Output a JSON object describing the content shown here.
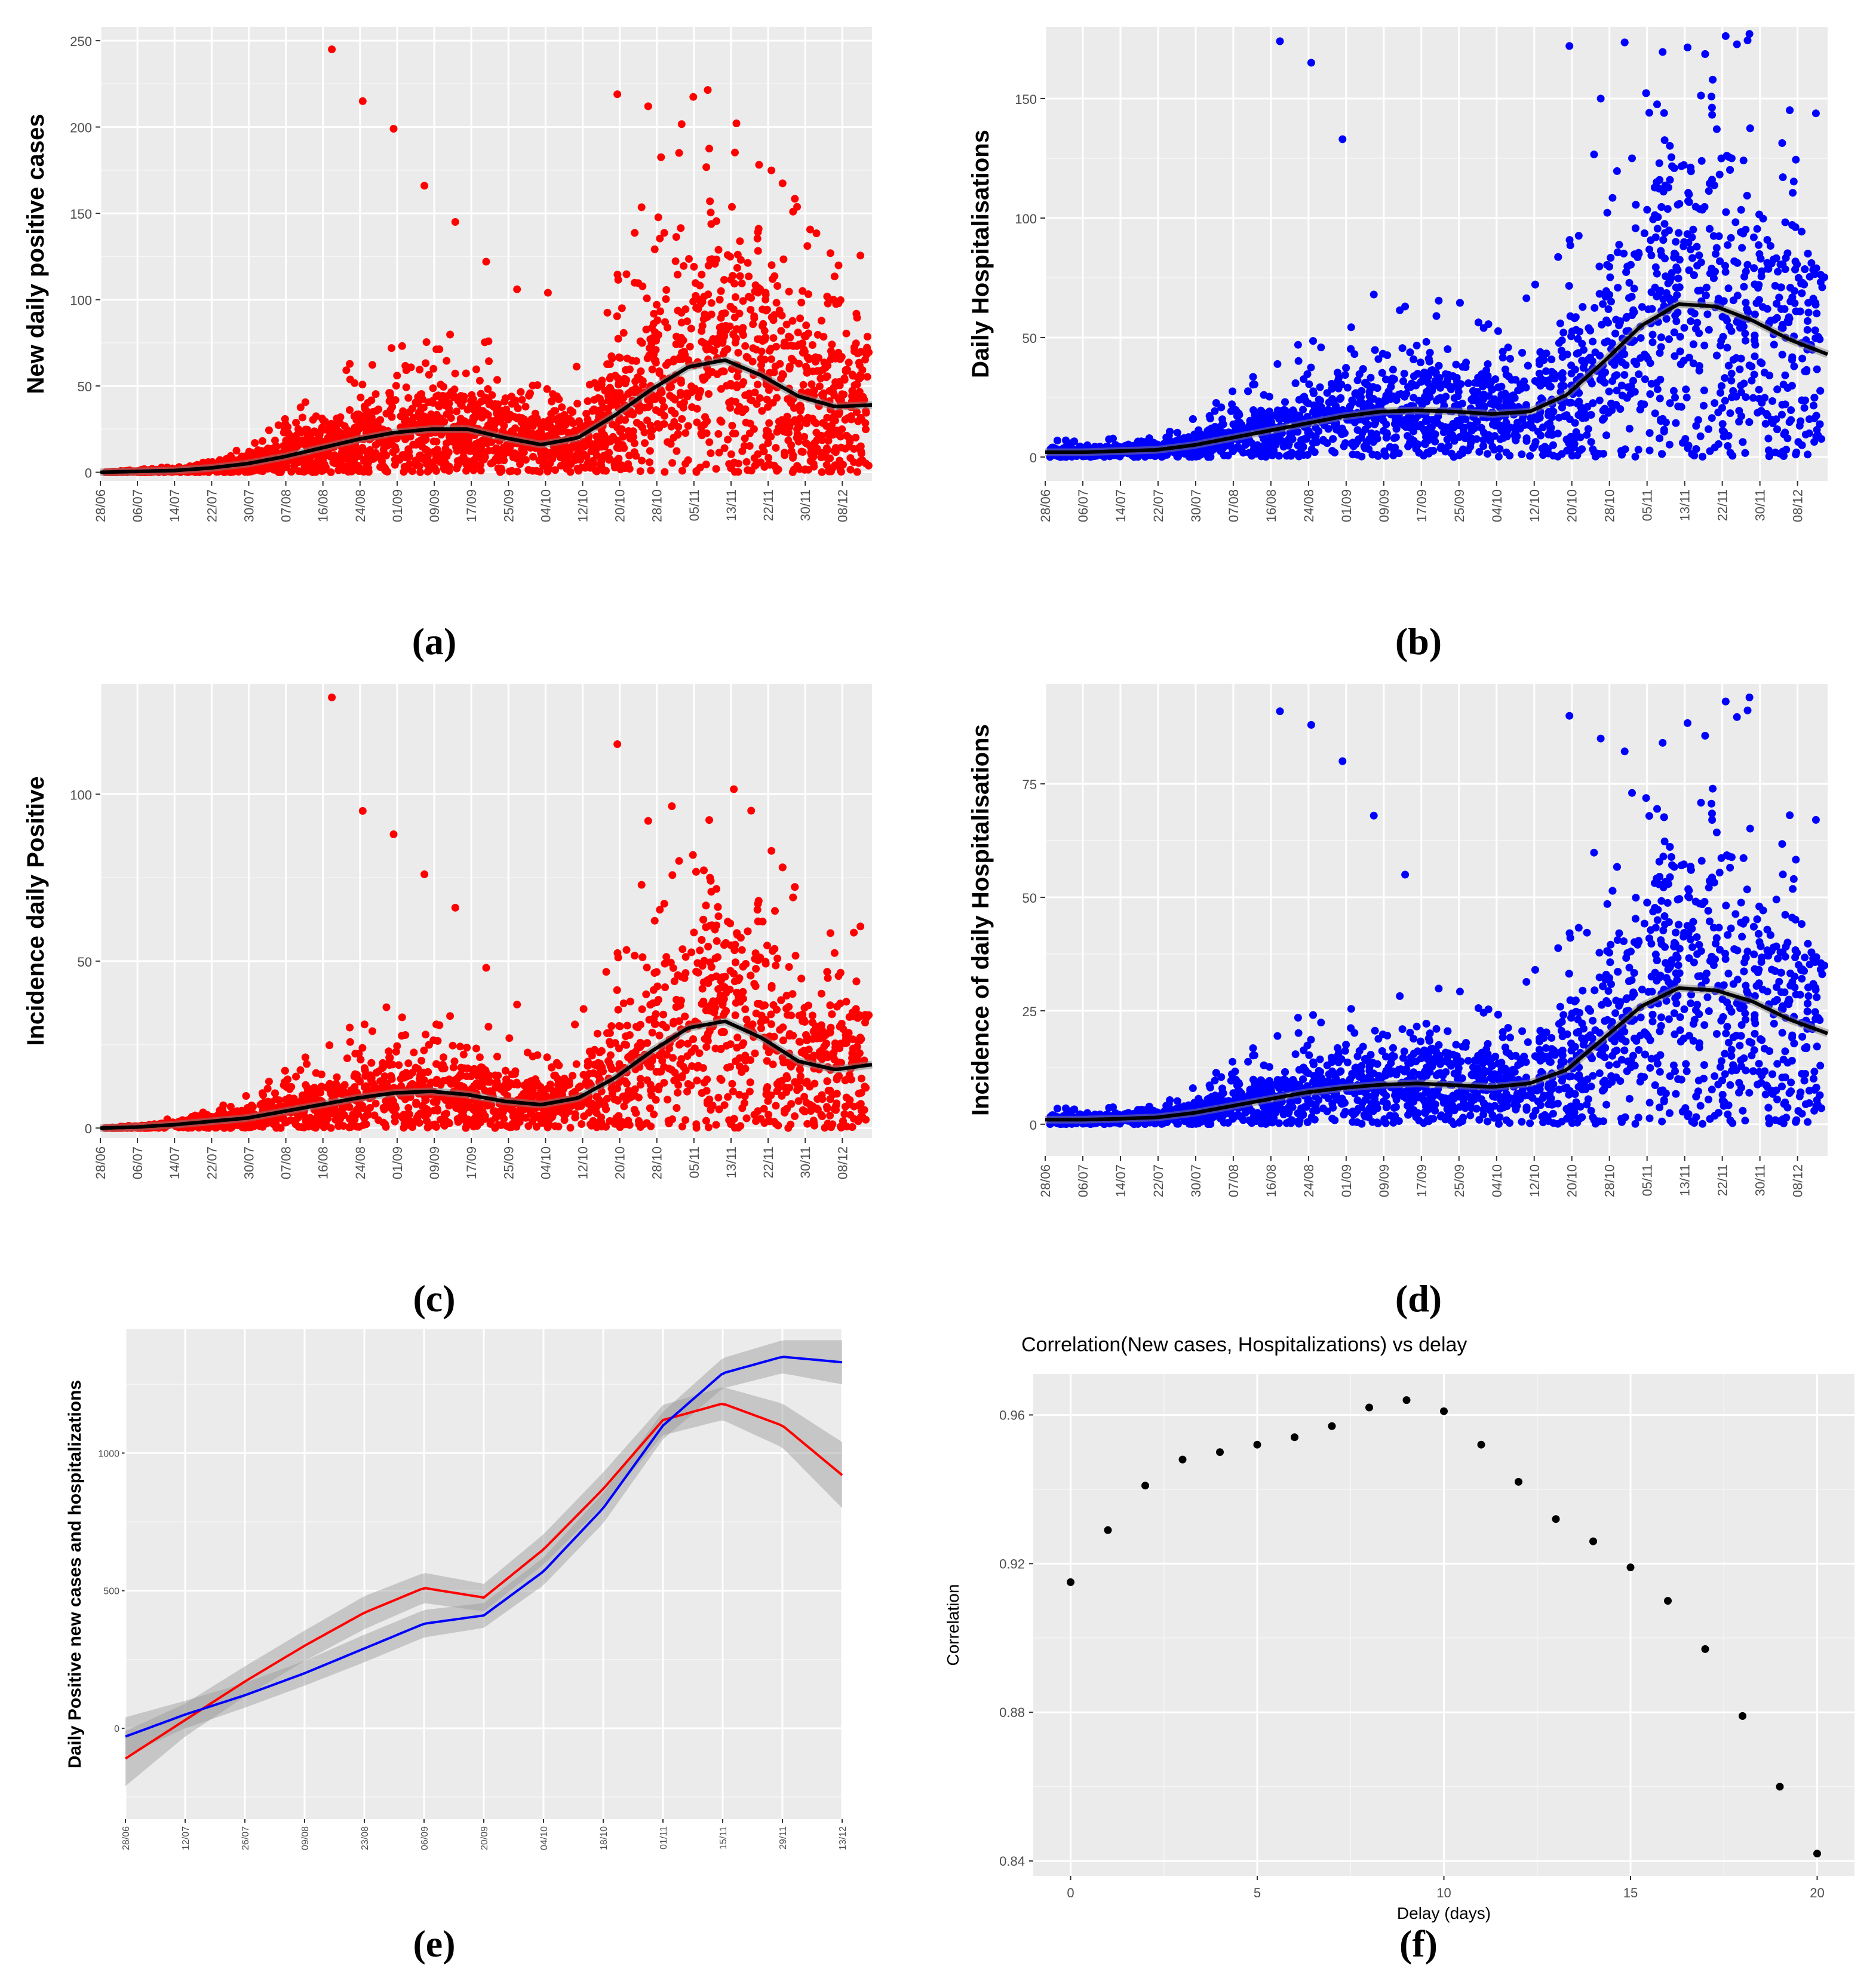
{
  "figure": {
    "panels": [
      {
        "id": "a",
        "label": "(a)",
        "ylabel": "New daily positive cases",
        "color": "#ff0000"
      },
      {
        "id": "b",
        "label": "(b)",
        "ylabel": "Daily Hospitalisations",
        "color": "#0000ff"
      },
      {
        "id": "c",
        "label": "(c)",
        "ylabel": "Incidence daily Positive",
        "color": "#ff0000"
      },
      {
        "id": "d",
        "label": "(d)",
        "ylabel": "Incidence of daily Hospitalisations",
        "color": "#0000ff"
      },
      {
        "id": "e",
        "label": "(e)",
        "ylabel": "Daily Positive new cases and hospitalizations"
      },
      {
        "id": "f",
        "label": "(f)",
        "title": "Correlation(New cases, Hospitalizations)  vs delay",
        "xlabel": "Delay (days)",
        "ylabel": "Correlation"
      }
    ]
  },
  "chart_data": [
    {
      "id": "a",
      "type": "scatter",
      "ylabel": "New daily positive cases",
      "x_ticks": [
        "28/06",
        "06/07",
        "14/07",
        "22/07",
        "30/07",
        "07/08",
        "16/08",
        "24/08",
        "01/09",
        "09/09",
        "17/09",
        "25/09",
        "04/10",
        "12/10",
        "20/10",
        "28/10",
        "05/11",
        "13/11",
        "22/11",
        "30/11",
        "08/12"
      ],
      "y_ticks": [
        0,
        50,
        100,
        150,
        200,
        250
      ],
      "ylim": [
        -5,
        258
      ],
      "point_color": "#ff0000",
      "smooth_line": [
        0,
        0.5,
        1,
        2.5,
        5,
        9,
        14,
        19,
        23,
        25,
        25,
        20,
        16,
        20,
        33,
        48,
        61,
        65,
        56,
        44,
        38,
        39
      ],
      "notable_points": [
        245,
        219,
        215,
        212,
        199,
        185,
        166,
        157,
        145,
        123,
        122,
        120,
        106,
        105,
        104,
        100
      ]
    },
    {
      "id": "b",
      "type": "scatter",
      "ylabel": "Daily Hospitalisations",
      "x_ticks": [
        "28/06",
        "06/07",
        "14/07",
        "22/07",
        "30/07",
        "07/08",
        "16/08",
        "24/08",
        "01/09",
        "09/09",
        "17/09",
        "25/09",
        "04/10",
        "12/10",
        "20/10",
        "28/10",
        "05/11",
        "13/11",
        "22/11",
        "30/11",
        "08/12"
      ],
      "y_ticks": [
        0,
        50,
        100,
        150
      ],
      "ylim": [
        -10,
        180
      ],
      "point_color": "#0000ff",
      "smooth_line": [
        2,
        2,
        2.5,
        3,
        5,
        8,
        11,
        14,
        17,
        19,
        19.5,
        19,
        18,
        19,
        26,
        40,
        55,
        64,
        63,
        57,
        49,
        43
      ],
      "notable_points": [
        174,
        172,
        165,
        150,
        133,
        125,
        68,
        66,
        63,
        60,
        59,
        58
      ]
    },
    {
      "id": "c",
      "type": "scatter",
      "ylabel": "Incidence daily Positive",
      "x_ticks": [
        "28/06",
        "06/07",
        "14/07",
        "22/07",
        "30/07",
        "07/08",
        "16/08",
        "24/08",
        "01/09",
        "09/09",
        "17/09",
        "25/09",
        "04/10",
        "12/10",
        "20/10",
        "28/10",
        "05/11",
        "13/11",
        "22/11",
        "30/11",
        "08/12"
      ],
      "y_ticks": [
        0,
        50,
        100
      ],
      "ylim": [
        -3,
        133
      ],
      "point_color": "#ff0000",
      "smooth_line": [
        0,
        0.3,
        1,
        2,
        3,
        5,
        7,
        9,
        10.5,
        11,
        10,
        8,
        7,
        9,
        15,
        23,
        30,
        32,
        27,
        20,
        17.5,
        19
      ],
      "notable_points": [
        129,
        115,
        95,
        92,
        88,
        80,
        76,
        75,
        66,
        57,
        48,
        42,
        37,
        32
      ]
    },
    {
      "id": "d",
      "type": "scatter",
      "ylabel": "Incidence of daily Hospitalisations",
      "x_ticks": [
        "28/06",
        "06/07",
        "14/07",
        "22/07",
        "30/07",
        "07/08",
        "16/08",
        "24/08",
        "01/09",
        "09/09",
        "17/09",
        "25/09",
        "04/10",
        "12/10",
        "20/10",
        "28/10",
        "05/11",
        "13/11",
        "22/11",
        "30/11",
        "08/12"
      ],
      "y_ticks": [
        0,
        25,
        50,
        75
      ],
      "ylim": [
        -7,
        97
      ],
      "point_color": "#0000ff",
      "smooth_line": [
        1,
        1,
        1.2,
        1.5,
        2.5,
        4,
        5.5,
        7,
        8,
        8.7,
        9,
        8.6,
        8.2,
        9,
        12,
        19,
        26,
        30,
        29.5,
        27,
        23,
        20
      ],
      "notable_points": [
        91,
        90,
        88,
        85,
        80,
        73,
        68,
        59,
        55,
        23,
        21,
        20
      ]
    },
    {
      "id": "e",
      "type": "line",
      "ylabel": "Daily Positive new cases and hospitalizations",
      "x_ticks": [
        "28/06",
        "12/07",
        "26/07",
        "09/08",
        "23/08",
        "06/09",
        "20/09",
        "04/10",
        "18/10",
        "01/11",
        "15/11",
        "29/11",
        "13/12"
      ],
      "y_ticks": [
        0,
        500,
        1000
      ],
      "ylim": [
        -330,
        1450
      ],
      "series": [
        {
          "color": "#ff0000",
          "values": [
            -110,
            30,
            170,
            300,
            420,
            510,
            475,
            650,
            870,
            1120,
            1180,
            1100,
            920
          ],
          "band": [
            100,
            60,
            55,
            55,
            60,
            55,
            50,
            55,
            60,
            55,
            60,
            80,
            120
          ]
        },
        {
          "color": "#0000ff",
          "values": [
            -30,
            50,
            120,
            200,
            290,
            380,
            410,
            570,
            800,
            1100,
            1290,
            1350,
            1330
          ],
          "band": [
            70,
            50,
            45,
            45,
            50,
            50,
            45,
            50,
            55,
            50,
            55,
            60,
            80
          ]
        }
      ]
    },
    {
      "id": "f",
      "type": "scatter",
      "title": "Correlation(New cases, Hospitalizations)  vs delay",
      "xlabel": "Delay (days)",
      "ylabel": "Correlation",
      "x_ticks": [
        0,
        5,
        10,
        15,
        20
      ],
      "y_ticks": [
        0.84,
        0.88,
        0.92,
        0.96
      ],
      "xlim": [
        -1,
        21
      ],
      "ylim": [
        0.836,
        0.971
      ],
      "x": [
        0,
        1,
        2,
        3,
        4,
        5,
        6,
        7,
        8,
        9,
        10,
        11,
        12,
        13,
        14,
        15,
        16,
        17,
        18,
        19,
        20
      ],
      "y": [
        0.915,
        0.929,
        0.941,
        0.948,
        0.95,
        0.952,
        0.954,
        0.957,
        0.962,
        0.964,
        0.961,
        0.952,
        0.942,
        0.932,
        0.926,
        0.919,
        0.91,
        0.897,
        0.879,
        0.86,
        0.842
      ]
    }
  ]
}
